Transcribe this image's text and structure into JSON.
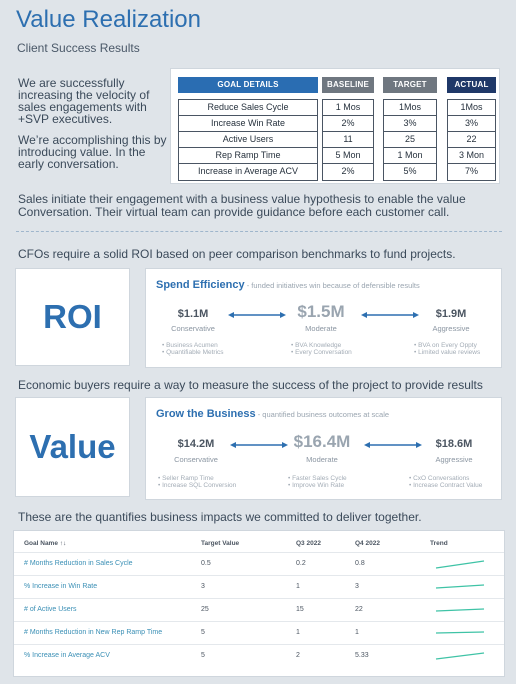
{
  "header": {
    "title": "Value Realization",
    "subtitle": "Client Success Results"
  },
  "intro": {
    "p1": "We are successfully increasing the velocity of sales engagements with +SVP executives.",
    "p2": "We’re accomplishing this by introducing value. In the early conversation."
  },
  "goal_table": {
    "headers": {
      "goal": "GOAL DETAILS",
      "baseline": "BASELINE",
      "target": "TARGET",
      "actual": "ACTUAL"
    },
    "rows": [
      {
        "goal": "Reduce Sales Cycle",
        "baseline": "1 Mos",
        "target": "1Mos",
        "actual": "1Mos"
      },
      {
        "goal": "Increase Win Rate",
        "baseline": "2%",
        "target": "3%",
        "actual": "3%"
      },
      {
        "goal": "Active Users",
        "baseline": "11",
        "target": "25",
        "actual": "22"
      },
      {
        "goal": "Rep Ramp Time",
        "baseline": "5 Mon",
        "target": "1 Mon",
        "actual": "3 Mon"
      },
      {
        "goal": "Increase in Average ACV",
        "baseline": "2%",
        "target": "5%",
        "actual": "7%"
      }
    ]
  },
  "sales_text": "Sales initiate their engagement with a business value hypothesis to enable the value Conversation. Their virtual team can provide guidance before each customer call.",
  "roi_section": {
    "intro": "CFOs require a solid ROI based on peer comparison benchmarks to fund projects.",
    "box_label": "ROI",
    "heading": "Spend Efficiency",
    "subheading": " - funded initiatives win because of defensible results",
    "conservative": {
      "value": "$1.1M",
      "label": "Conservative",
      "notes": [
        "• Business Acumen",
        "• Quantifiable Metrics"
      ]
    },
    "moderate": {
      "value": "$1.5M",
      "label": "Moderate",
      "notes": [
        "• BVA Knowledge",
        "• Every Conversation"
      ]
    },
    "aggressive": {
      "value": "$1.9M",
      "label": "Aggressive",
      "notes": [
        "• BVA on Every Oppty",
        "• Limited value reviews"
      ]
    }
  },
  "value_section": {
    "intro": "Economic buyers require a way to measure the success of the project to provide results",
    "box_label": "Value",
    "heading": "Grow the Business",
    "subheading": " - quantified business outcomes at scale",
    "conservative": {
      "value": "$14.2M",
      "label": "Conservative",
      "notes": [
        "• Seller Ramp Time",
        "• Increase SQL Conversion"
      ]
    },
    "moderate": {
      "value": "$16.4M",
      "label": "Moderate",
      "notes": [
        "• Faster Sales Cycle",
        "• Improve Win Rate"
      ]
    },
    "aggressive": {
      "value": "$18.6M",
      "label": "Aggressive",
      "notes": [
        "• CxO Conversations",
        "• Increase Contract Value"
      ]
    }
  },
  "impact": {
    "intro": "These are the quantifies business impacts we committed to deliver together.",
    "columns": {
      "goal": "Goal Name ↑↓",
      "target": "Target Value",
      "q3": "Q3 2022",
      "q4": "Q4 2022",
      "trend": "Trend"
    },
    "rows": [
      {
        "goal": "# Months Reduction in Sales Cycle",
        "target": "0.5",
        "q3": "0.2",
        "q4": "0.8"
      },
      {
        "goal": "% Increase in Win Rate",
        "target": "3",
        "q3": "1",
        "q4": "3"
      },
      {
        "goal": "# of Active Users",
        "target": "25",
        "q3": "15",
        "q4": "22"
      },
      {
        "goal": "# Months Reduction in New Rep Ramp Time",
        "target": "5",
        "q3": "1",
        "q4": "1"
      },
      {
        "goal": "% Increase in Average ACV",
        "target": "5",
        "q3": "2",
        "q4": "5.33"
      }
    ],
    "trend_color": "#3fc3a6"
  },
  "colors": {
    "brand_blue": "#2d6fb0",
    "dark_navy": "#1f3868",
    "gray_header": "#6f7780"
  }
}
